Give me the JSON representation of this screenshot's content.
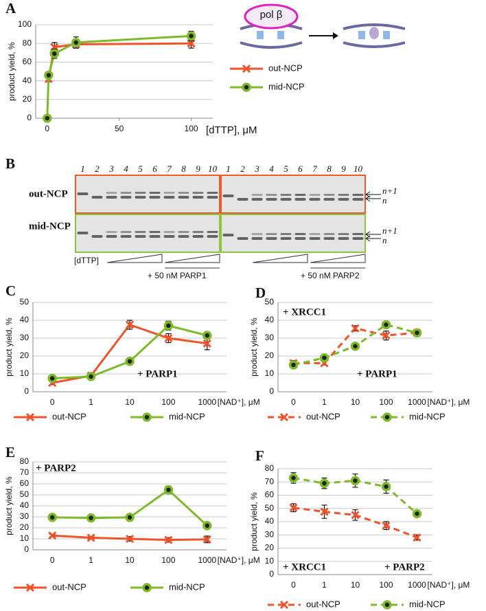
{
  "panels": [
    "A",
    "B",
    "C",
    "D",
    "E",
    "F"
  ],
  "diagram": {
    "label": "pol β"
  },
  "gel": {
    "lanes": [
      "1",
      "2",
      "3",
      "4",
      "5",
      "6",
      "7",
      "8",
      "9",
      "10"
    ],
    "rows": [
      "out-NCP",
      "mid-NCP"
    ],
    "bands": [
      "n+1",
      "n"
    ],
    "titration": "[dTTP]",
    "conditions": [
      "+ 50 nM PARP1",
      "+ 50 nM PARP2"
    ]
  },
  "chart_data": [
    {
      "type": "line",
      "ylabel": "product yield, %",
      "xlabel": "[dTTP], μM",
      "legend": "right",
      "grid": true,
      "xlim": [
        -8,
        115
      ],
      "xticks": [
        0,
        50,
        100
      ],
      "ylim": [
        0,
        100
      ],
      "yticks": [
        0,
        20,
        40,
        60,
        80,
        100
      ],
      "series": [
        {
          "name": "out-NCP",
          "color": "#f0522a",
          "marker": "x",
          "line_style": "solid",
          "x": [
            1,
            5,
            20,
            100
          ],
          "values": [
            42,
            76,
            79,
            80
          ],
          "errors": [
            3,
            5,
            4,
            5
          ]
        },
        {
          "name": "mid-NCP",
          "color": "#7dba2a",
          "marker": "circle",
          "line_style": "solid",
          "x": [
            0,
            1,
            5,
            20,
            100
          ],
          "values": [
            0,
            46,
            69,
            81,
            88
          ],
          "errors": [
            1,
            2,
            5,
            6,
            5
          ]
        }
      ]
    },
    {
      "type": "line",
      "ylabel": "product yield, %",
      "xlabel": "[NAD⁺], μM",
      "legend": "bottom",
      "grid": true,
      "categories": [
        "0",
        "1",
        "10",
        "100",
        "1000"
      ],
      "ylim": [
        0,
        50
      ],
      "yticks": [
        0,
        10,
        20,
        30,
        40,
        50
      ],
      "annotations": [
        "+ PARP1"
      ],
      "series": [
        {
          "name": "out-NCP",
          "color": "#f0522a",
          "marker": "x",
          "line_style": "solid",
          "values": [
            5,
            9,
            37.5,
            30,
            27
          ],
          "errors": [
            1,
            1,
            2.5,
            2.5,
            3.5
          ]
        },
        {
          "name": "mid-NCP",
          "color": "#7dba2a",
          "marker": "circle",
          "line_style": "solid",
          "values": [
            7.5,
            8.5,
            17,
            37,
            31.5
          ],
          "errors": [
            1,
            1,
            1,
            2.5,
            2
          ]
        }
      ]
    },
    {
      "type": "line",
      "ylabel": "product yield, %",
      "xlabel": "[NAD⁺], μM",
      "legend": "bottom",
      "grid": true,
      "categories": [
        "0",
        "1",
        "10",
        "100",
        "1000"
      ],
      "ylim": [
        0,
        50
      ],
      "yticks": [
        0,
        10,
        20,
        30,
        40,
        50
      ],
      "annotations": [
        "+ XRCC1",
        "+ PARP1"
      ],
      "series": [
        {
          "name": "out-NCP",
          "color": "#f0522a",
          "marker": "x",
          "line_style": "dashed",
          "values": [
            16,
            16,
            35.5,
            31.5,
            33
          ],
          "errors": [
            1.5,
            1,
            1.5,
            2.5,
            1
          ]
        },
        {
          "name": "mid-NCP",
          "color": "#7dba2a",
          "marker": "circle",
          "line_style": "dashed",
          "values": [
            15,
            19,
            25.5,
            37.5,
            33
          ],
          "errors": [
            1.5,
            1.5,
            1,
            1,
            1
          ]
        }
      ]
    },
    {
      "type": "line",
      "ylabel": "product yield, %",
      "xlabel": "[NAD⁺], μM",
      "legend": "bottom",
      "grid": true,
      "categories": [
        "0",
        "1",
        "10",
        "100",
        "1000"
      ],
      "ylim": [
        0,
        80
      ],
      "yticks": [
        0,
        10,
        20,
        30,
        40,
        50,
        60,
        70,
        80
      ],
      "annotations": [
        "+ PARP2"
      ],
      "series": [
        {
          "name": "out-NCP",
          "color": "#f0522a",
          "marker": "x",
          "line_style": "solid",
          "values": [
            13,
            11,
            10,
            9,
            9.5
          ],
          "errors": [
            1,
            1,
            2,
            2,
            3
          ]
        },
        {
          "name": "mid-NCP",
          "color": "#7dba2a",
          "marker": "circle",
          "line_style": "solid",
          "values": [
            29.5,
            29,
            29.5,
            54.5,
            22
          ],
          "errors": [
            1,
            1,
            1,
            3.5,
            1
          ]
        }
      ]
    },
    {
      "type": "line",
      "ylabel": "product yield, %",
      "xlabel": "[NAD⁺], μM",
      "legend": "bottom",
      "grid": true,
      "categories": [
        "0",
        "1",
        "10",
        "100",
        "1000"
      ],
      "ylim": [
        0,
        80
      ],
      "yticks": [
        0,
        10,
        20,
        30,
        40,
        50,
        60,
        70,
        80
      ],
      "annotations": [
        "+ XRCC1",
        "+ PARP2"
      ],
      "series": [
        {
          "name": "out-NCP",
          "color": "#f0522a",
          "marker": "x",
          "line_style": "dashed",
          "values": [
            50.5,
            47.5,
            45,
            37,
            28
          ],
          "errors": [
            3,
            5,
            4,
            3,
            2
          ]
        },
        {
          "name": "mid-NCP",
          "color": "#7dba2a",
          "marker": "circle",
          "line_style": "dashed",
          "values": [
            73,
            69,
            71,
            66.5,
            46
          ],
          "errors": [
            4,
            4,
            5,
            5,
            2
          ]
        }
      ]
    }
  ]
}
